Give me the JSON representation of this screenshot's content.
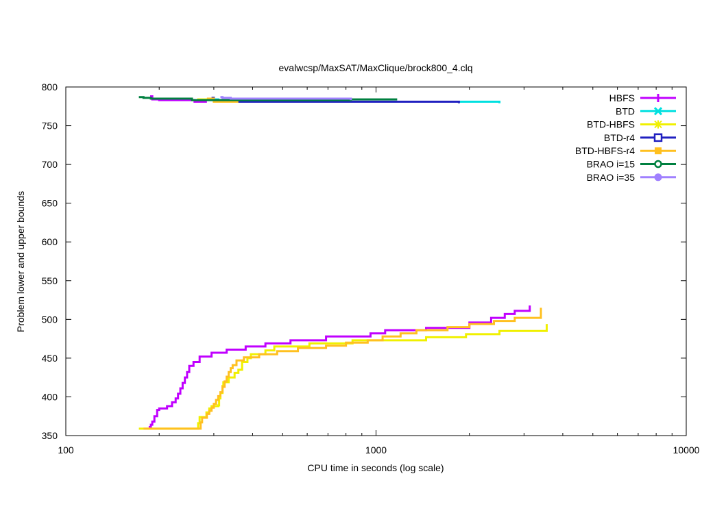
{
  "chart_data": {
    "type": "line",
    "title": "evalwcsp/MaxSAT/MaxClique/brock800_4.clq",
    "xlabel": "CPU time in seconds (log scale)",
    "ylabel": "Problem lower and upper bounds",
    "xscale": "log",
    "xlim": [
      100,
      10000
    ],
    "ylim": [
      350,
      800
    ],
    "xticks": [
      100,
      1000,
      10000
    ],
    "xtick_labels": [
      "100",
      "1000",
      "10000"
    ],
    "yticks": [
      350,
      400,
      450,
      500,
      550,
      600,
      650,
      700,
      750,
      800
    ],
    "ytick_labels": [
      "350",
      "400",
      "450",
      "500",
      "550",
      "600",
      "650",
      "700",
      "750",
      "800"
    ],
    "legend_position": "top-right",
    "series": [
      {
        "name": "HBFS",
        "color": "#c000ff",
        "marker": "plus",
        "upper": [
          [
            187,
            788
          ],
          [
            190,
            784
          ],
          [
            200,
            783
          ],
          [
            250,
            783
          ],
          [
            260,
            781
          ],
          [
            285,
            781
          ]
        ],
        "lower": [
          [
            185,
            361
          ],
          [
            188,
            364
          ],
          [
            190,
            368
          ],
          [
            193,
            375
          ],
          [
            197,
            383
          ],
          [
            200,
            385
          ],
          [
            212,
            388
          ],
          [
            220,
            393
          ],
          [
            226,
            398
          ],
          [
            230,
            404
          ],
          [
            234,
            411
          ],
          [
            238,
            418
          ],
          [
            242,
            425
          ],
          [
            246,
            432
          ],
          [
            250,
            440
          ],
          [
            258,
            445
          ],
          [
            270,
            452
          ],
          [
            295,
            457
          ],
          [
            330,
            461
          ],
          [
            380,
            465
          ],
          [
            440,
            469
          ],
          [
            530,
            473
          ],
          [
            690,
            478
          ],
          [
            960,
            482
          ],
          [
            1070,
            486
          ],
          [
            1450,
            489
          ],
          [
            2000,
            496
          ],
          [
            2350,
            502
          ],
          [
            2600,
            507
          ],
          [
            2800,
            511
          ],
          [
            3130,
            518
          ]
        ]
      },
      {
        "name": "BTD",
        "color": "#00e0e0",
        "marker": "cross",
        "upper": [
          [
            300,
            784
          ],
          [
            310,
            781
          ],
          [
            2500,
            781
          ],
          [
            2500,
            779
          ]
        ],
        "lower": []
      },
      {
        "name": "BTD-HBFS",
        "color": "#f0f000",
        "marker": "star",
        "upper": [
          [
            265,
            784
          ],
          [
            280,
            784
          ],
          [
            300,
            782
          ],
          [
            360,
            782
          ]
        ],
        "lower": [
          [
            172,
            359
          ],
          [
            183,
            359
          ],
          [
            265,
            359
          ],
          [
            267,
            366
          ],
          [
            270,
            374
          ],
          [
            284,
            380
          ],
          [
            290,
            385
          ],
          [
            295,
            388
          ],
          [
            310,
            389
          ],
          [
            312,
            398
          ],
          [
            315,
            405
          ],
          [
            320,
            414
          ],
          [
            322,
            419
          ],
          [
            335,
            425
          ],
          [
            350,
            431
          ],
          [
            360,
            435
          ],
          [
            370,
            445
          ],
          [
            385,
            450
          ],
          [
            395,
            455
          ],
          [
            440,
            460
          ],
          [
            470,
            465
          ],
          [
            610,
            469
          ],
          [
            840,
            473
          ],
          [
            1450,
            477
          ],
          [
            1950,
            481
          ],
          [
            2500,
            485
          ],
          [
            3550,
            489
          ],
          [
            3550,
            494
          ]
        ]
      },
      {
        "name": "BTD-r4",
        "color": "#2020c0",
        "marker": "square",
        "upper": [
          [
            295,
            786
          ],
          [
            300,
            783
          ],
          [
            360,
            781
          ],
          [
            1850,
            781
          ],
          [
            1850,
            779
          ]
        ],
        "lower": []
      },
      {
        "name": "BTD-HBFS-r4",
        "color": "#ffc020",
        "marker": "filled-square",
        "upper": [
          [
            285,
            785
          ],
          [
            300,
            781
          ],
          [
            360,
            781
          ]
        ],
        "lower": [
          [
            178,
            359
          ],
          [
            270,
            359
          ],
          [
            272,
            367
          ],
          [
            275,
            373
          ],
          [
            285,
            378
          ],
          [
            290,
            382
          ],
          [
            295,
            386
          ],
          [
            300,
            391
          ],
          [
            305,
            396
          ],
          [
            310,
            401
          ],
          [
            315,
            406
          ],
          [
            320,
            413
          ],
          [
            325,
            420
          ],
          [
            330,
            426
          ],
          [
            335,
            432
          ],
          [
            340,
            437
          ],
          [
            345,
            441
          ],
          [
            355,
            447
          ],
          [
            375,
            451
          ],
          [
            420,
            455
          ],
          [
            480,
            459
          ],
          [
            560,
            463
          ],
          [
            690,
            466
          ],
          [
            800,
            470
          ],
          [
            940,
            473
          ],
          [
            1050,
            478
          ],
          [
            1200,
            482
          ],
          [
            1350,
            486
          ],
          [
            1700,
            490
          ],
          [
            2000,
            494
          ],
          [
            2400,
            498
          ],
          [
            2800,
            502
          ],
          [
            3400,
            506
          ],
          [
            3400,
            515
          ]
        ]
      },
      {
        "name": "BRAO i=15",
        "color": "#008040",
        "marker": "circle",
        "upper": [
          [
            172,
            787
          ],
          [
            178,
            786
          ],
          [
            188,
            785
          ],
          [
            250,
            785
          ],
          [
            255,
            783
          ],
          [
            500,
            783
          ],
          [
            830,
            784
          ],
          [
            1170,
            784
          ]
        ],
        "lower": []
      },
      {
        "name": "BRAO i=35",
        "color": "#a080ff",
        "marker": "filled-circle",
        "upper": [
          [
            315,
            787
          ],
          [
            320,
            786
          ],
          [
            340,
            785
          ],
          [
            830,
            784
          ],
          [
            830,
            783
          ]
        ],
        "lower": []
      }
    ]
  }
}
